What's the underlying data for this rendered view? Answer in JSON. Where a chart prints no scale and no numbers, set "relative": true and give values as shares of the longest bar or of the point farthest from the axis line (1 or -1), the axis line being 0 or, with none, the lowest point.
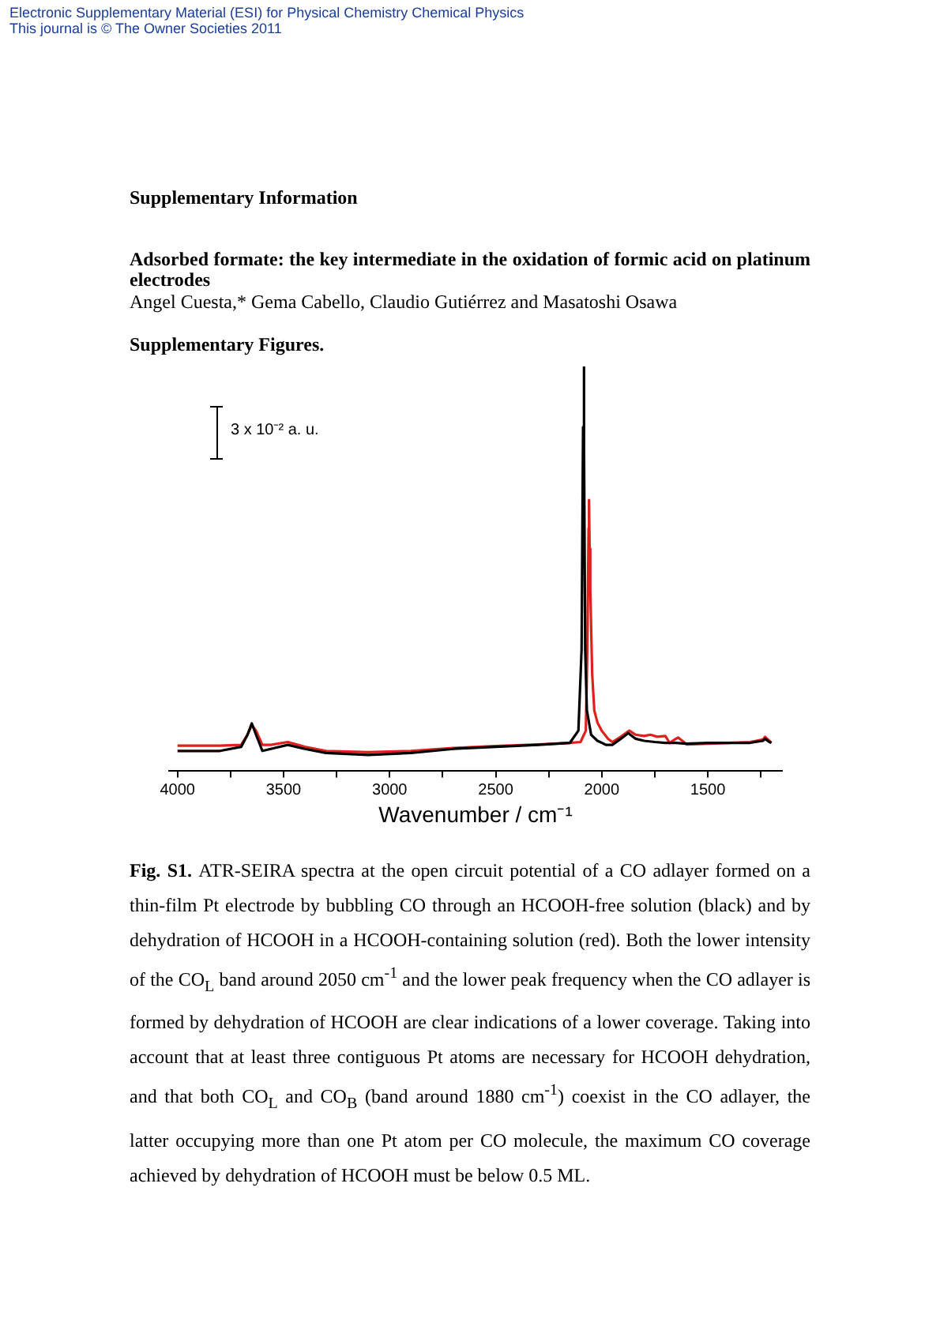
{
  "chart_data": {
    "type": "line",
    "title": "Adsorbed formate: the key intermediate in the oxidation of formic acid on platinum electrodes",
    "subtitle": "Angel Cuesta,* Gema Cabello, Claudio Gutiérrez and Masatoshi Osawa",
    "xlabel": "Wavenumber / cm⁻¹",
    "relative": true,
    "xlim": [
      4040,
      1150
    ],
    "xticks": [
      4000,
      {
        "value": 3750,
        "label": null
      },
      3500,
      {
        "value": 3250,
        "label": null
      },
      3000,
      {
        "value": 2750,
        "label": null
      },
      2500,
      {
        "value": 2250,
        "label": null
      },
      2000,
      {
        "value": 1750,
        "label": null
      },
      1500,
      {
        "value": 1250,
        "label": null
      }
    ],
    "grid": false,
    "legend": false,
    "marker": "none",
    "line_style": "solid",
    "series": [
      {
        "color": "#000000",
        "x": [
          4000,
          3800,
          3700,
          3670,
          3650,
          3630,
          3600,
          3560,
          3480,
          3400,
          3300,
          3100,
          2900,
          2700,
          2500,
          2300,
          2150,
          2110,
          2095,
          2088,
          2085,
          2082,
          2078,
          2070,
          2050,
          2020,
          1980,
          1950,
          1910,
          1875,
          1840,
          1800,
          1750,
          1700,
          1650,
          1600,
          1500,
          1400,
          1300,
          1240,
          1230,
          1210,
          1200
        ],
        "values": [
          0.05,
          0.05,
          0.06,
          0.09,
          0.118,
          0.09,
          0.05,
          0.055,
          0.065,
          0.055,
          0.045,
          0.04,
          0.045,
          0.055,
          0.06,
          0.065,
          0.07,
          0.1,
          0.3,
          0.85,
          1,
          0.8,
          0.3,
          0.15,
          0.09,
          0.075,
          0.065,
          0.065,
          0.08,
          0.094,
          0.08,
          0.075,
          0.072,
          0.07,
          0.07,
          0.068,
          0.07,
          0.07,
          0.07,
          0.075,
          0.08,
          0.072,
          0.07
        ]
      },
      {
        "color": "#e0201b",
        "x": [
          4000,
          3800,
          3700,
          3670,
          3650,
          3630,
          3600,
          3560,
          3480,
          3400,
          3300,
          3100,
          2900,
          2700,
          2500,
          2300,
          2150,
          2100,
          2075,
          2068,
          2062,
          2060,
          2057,
          2054,
          2045,
          2035,
          2020,
          2000,
          1970,
          1950,
          1910,
          1870,
          1840,
          1800,
          1770,
          1740,
          1700,
          1680,
          1650,
          1640,
          1620,
          1600,
          1500,
          1400,
          1300,
          1240,
          1230,
          1210,
          1200
        ],
        "values": [
          0.063,
          0.063,
          0.065,
          0.09,
          0.114,
          0.1,
          0.065,
          0.065,
          0.072,
          0.06,
          0.05,
          0.047,
          0.05,
          0.057,
          0.062,
          0.066,
          0.07,
          0.072,
          0.1,
          0.3,
          0.6,
          0.67,
          0.55,
          0.45,
          0.24,
          0.15,
          0.12,
          0.1,
          0.08,
          0.072,
          0.085,
          0.1,
          0.09,
          0.087,
          0.09,
          0.085,
          0.087,
          0.07,
          0.08,
          0.083,
          0.075,
          0.066,
          0.068,
          0.07,
          0.072,
          0.078,
          0.085,
          0.075,
          0.07
        ]
      }
    ],
    "annotations": [
      "Electronic Supplementary Material (ESI) for Physical Chemistry Chemical Physics",
      "This journal is © The Owner Societies 2011",
      "Supplementary Information",
      "Supplementary Figures.",
      "3 x 10⁻² a. u.",
      "Fig. S1.",
      "ATR-SEIRA spectra at the open circuit potential of a CO adlayer formed on a thin-film Pt electrode by bubbling CO through an HCOOH-free solution (black) and by dehydration of HCOOH in a HCOOH-containing solution (red). Both the lower intensity of the CO$_{L}$ band around 2050 cm$^{-1}$ and the lower peak frequency when the CO adlayer is formed by dehydration of HCOOH are clear indications of a lower coverage. Taking into account that at least three contiguous Pt atoms are necessary for HCOOH dehydration, and that both CO$_{L}$ and CO$_{B}$ (band around 1880 cm$^{-1}$) coexist in the CO adlayer, the latter occupying more than one Pt atom per CO molecule, the maximum CO coverage achieved by dehydration of HCOOH must be below 0.5 ML."
    ]
  }
}
